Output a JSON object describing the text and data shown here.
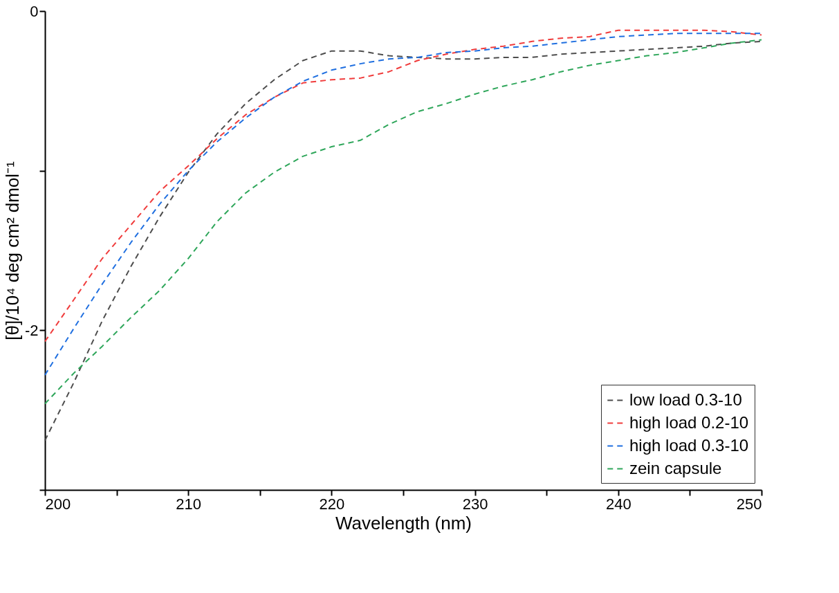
{
  "chart_data": {
    "type": "line",
    "xlabel": "Wavelength (nm)",
    "ylabel": "[θ]/10⁴ deg cm² dmol⁻¹",
    "x": [
      200,
      202,
      204,
      206,
      208,
      210,
      212,
      214,
      216,
      218,
      220,
      222,
      224,
      226,
      228,
      230,
      232,
      234,
      236,
      238,
      240,
      242,
      244,
      246,
      248,
      250
    ],
    "series": [
      {
        "name": "low load 0.3-10",
        "color": "#4d4d4d",
        "values": [
          -2.69,
          -2.33,
          -1.94,
          -1.6,
          -1.29,
          -1.01,
          -0.77,
          -0.58,
          -0.43,
          -0.31,
          -0.25,
          -0.25,
          -0.28,
          -0.29,
          -0.3,
          -0.3,
          -0.29,
          -0.29,
          -0.27,
          -0.26,
          -0.25,
          -0.24,
          -0.23,
          -0.22,
          -0.2,
          -0.19
        ]
      },
      {
        "name": "high load 0.2-10",
        "color": "#f03c3c",
        "values": [
          -2.07,
          -1.81,
          -1.55,
          -1.34,
          -1.13,
          -0.97,
          -0.8,
          -0.65,
          -0.54,
          -0.45,
          -0.43,
          -0.42,
          -0.38,
          -0.31,
          -0.27,
          -0.24,
          -0.22,
          -0.19,
          -0.17,
          -0.16,
          -0.12,
          -0.12,
          -0.12,
          -0.12,
          -0.13,
          -0.15
        ]
      },
      {
        "name": "high load 0.3-10",
        "color": "#1f6fe0",
        "values": [
          -2.28,
          -1.99,
          -1.71,
          -1.45,
          -1.21,
          -1.0,
          -0.82,
          -0.67,
          -0.54,
          -0.44,
          -0.37,
          -0.33,
          -0.3,
          -0.29,
          -0.26,
          -0.25,
          -0.23,
          -0.22,
          -0.2,
          -0.18,
          -0.16,
          -0.15,
          -0.14,
          -0.14,
          -0.14,
          -0.14
        ]
      },
      {
        "name": "zein capsule",
        "color": "#2ea65a",
        "values": [
          -2.46,
          -2.27,
          -2.1,
          -1.92,
          -1.75,
          -1.55,
          -1.32,
          -1.14,
          -1.01,
          -0.91,
          -0.85,
          -0.81,
          -0.71,
          -0.63,
          -0.58,
          -0.52,
          -0.47,
          -0.43,
          -0.38,
          -0.34,
          -0.31,
          -0.28,
          -0.26,
          -0.23,
          -0.2,
          -0.18
        ]
      }
    ],
    "xlim": [
      200,
      250
    ],
    "xticks": [
      200,
      {
        "value": 205,
        "label": null
      },
      210,
      {
        "value": 215,
        "label": null
      },
      220,
      {
        "value": 225,
        "label": null
      },
      230,
      {
        "value": 235,
        "label": null
      },
      240,
      {
        "value": 245,
        "label": null
      },
      250
    ],
    "ylim": [
      -3,
      0
    ],
    "yticks": [
      {
        "value": -3,
        "label": null
      },
      -2,
      {
        "value": -1,
        "label": null
      },
      0
    ],
    "legend": "bottom right",
    "grid": false,
    "line_style": "dashed",
    "marker": "none"
  }
}
